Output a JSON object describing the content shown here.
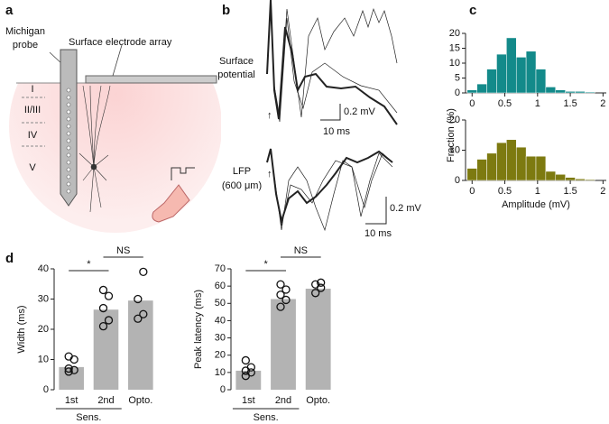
{
  "panel_labels": [
    "a",
    "b",
    "c",
    "d"
  ],
  "diagram": {
    "probe_label": [
      "Michigan",
      "probe"
    ],
    "array_label": "Surface electrode array",
    "layers": [
      "I",
      "II/III",
      "IV",
      "V"
    ]
  },
  "traces": {
    "labels": [
      [
        "Surface",
        "potential"
      ],
      [
        "LFP",
        "(600 μm)"
      ]
    ],
    "scale_bars": [
      [
        "0.2 mV",
        "10 ms"
      ],
      [
        "0.2 mV",
        "10 ms"
      ]
    ]
  },
  "chart_data": [
    {
      "type": "histogram",
      "color": "#138a8a",
      "ylabel": "Fraction (%)",
      "bins": [
        -0.075,
        0.075,
        0.225,
        0.375,
        0.525,
        0.675,
        0.825,
        0.975,
        1.125,
        1.275,
        1.425,
        1.575,
        1.725,
        1.875
      ],
      "values": [
        1,
        3,
        8,
        13,
        18.5,
        12,
        14,
        8,
        2,
        1,
        0.5,
        0.5,
        0.3
      ],
      "xlim": [
        -0.1,
        2.05
      ],
      "xticks": [
        0,
        0.5,
        1,
        1.5,
        2
      ],
      "ylim": [
        0,
        20
      ],
      "yticks": [
        0,
        5,
        10,
        15,
        20
      ]
    },
    {
      "type": "histogram",
      "color": "#7d7a10",
      "xlabel": "Amplitude (mV)",
      "bins": [
        -0.075,
        0.075,
        0.225,
        0.375,
        0.525,
        0.675,
        0.825,
        0.975,
        1.125,
        1.275,
        1.425,
        1.575,
        1.725,
        1.875
      ],
      "values": [
        4,
        7,
        9,
        12.5,
        13.5,
        11,
        8,
        8,
        3,
        2,
        1,
        0.5,
        0.3
      ],
      "xlim": [
        -0.1,
        2.05
      ],
      "xticks": [
        0,
        0.5,
        1,
        1.5,
        2
      ],
      "ylim": [
        0,
        20
      ],
      "yticks": [
        0,
        10,
        20
      ]
    },
    {
      "type": "bar",
      "color": "#b3b3b3",
      "ylabel": "Width (ms)",
      "categories": [
        "1st",
        "2nd",
        "Opto."
      ],
      "group_label": "Sens.",
      "annotations": [
        "*",
        "NS"
      ],
      "values": [
        7.5,
        26.5,
        29.5
      ],
      "points": [
        [
          6,
          6.5,
          7,
          10,
          11
        ],
        [
          21,
          23,
          27,
          31,
          33
        ],
        [
          23.5,
          25,
          30,
          39
        ]
      ],
      "ylim": [
        0,
        40
      ],
      "yticks": [
        0,
        10,
        20,
        30,
        40
      ]
    },
    {
      "type": "bar",
      "color": "#b3b3b3",
      "ylabel": "Peak latency (ms)",
      "categories": [
        "1st",
        "2nd",
        "Opto."
      ],
      "group_label": "Sens.",
      "annotations": [
        "*",
        "NS"
      ],
      "values": [
        11,
        52.5,
        58.5
      ],
      "points": [
        [
          8,
          10,
          11,
          13,
          17
        ],
        [
          48,
          52,
          55,
          58,
          61
        ],
        [
          56,
          59,
          61,
          62
        ]
      ],
      "ylim": [
        0,
        70
      ],
      "yticks": [
        0,
        10,
        20,
        30,
        40,
        50,
        60,
        70
      ]
    }
  ]
}
